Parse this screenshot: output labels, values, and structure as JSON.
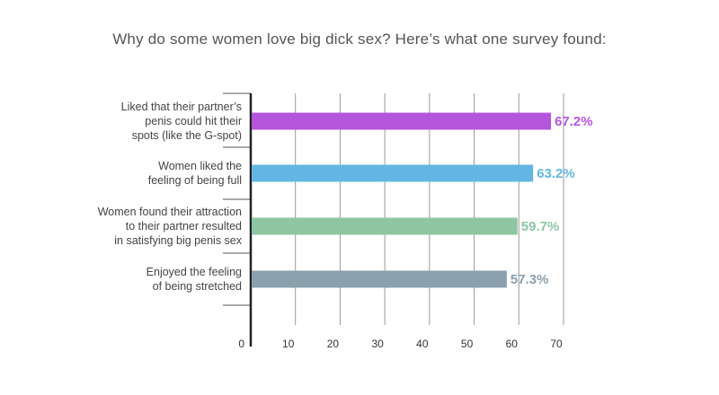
{
  "chart_data": {
    "type": "bar",
    "orientation": "horizontal",
    "title": "Why do some women love big dick sex? Here’s what one survey found:",
    "categories": [
      [
        "Liked that their partner’s",
        "penis could hit their",
        "spots (like the G-spot)"
      ],
      [
        "Women liked the",
        "feeling of being full"
      ],
      [
        "Women found their attraction",
        "to their partner resulted",
        "in satisfying big penis sex"
      ],
      [
        "Enjoyed the feeling",
        "of being stretched"
      ]
    ],
    "values": [
      67.2,
      63.2,
      59.7,
      57.3
    ],
    "value_labels": [
      "67.2%",
      "63.2%",
      "59.7%",
      "57.3%"
    ],
    "colors": [
      "#b455dc",
      "#64b6e2",
      "#8ec5a3",
      "#8aa0ad"
    ],
    "xlim": [
      0,
      70
    ],
    "xticks": [
      0,
      10,
      20,
      30,
      40,
      50,
      60,
      70
    ],
    "xtick_labels": [
      "0",
      "10",
      "20",
      "30",
      "40",
      "50",
      "60",
      "70"
    ],
    "grid": true,
    "legend": "none"
  }
}
